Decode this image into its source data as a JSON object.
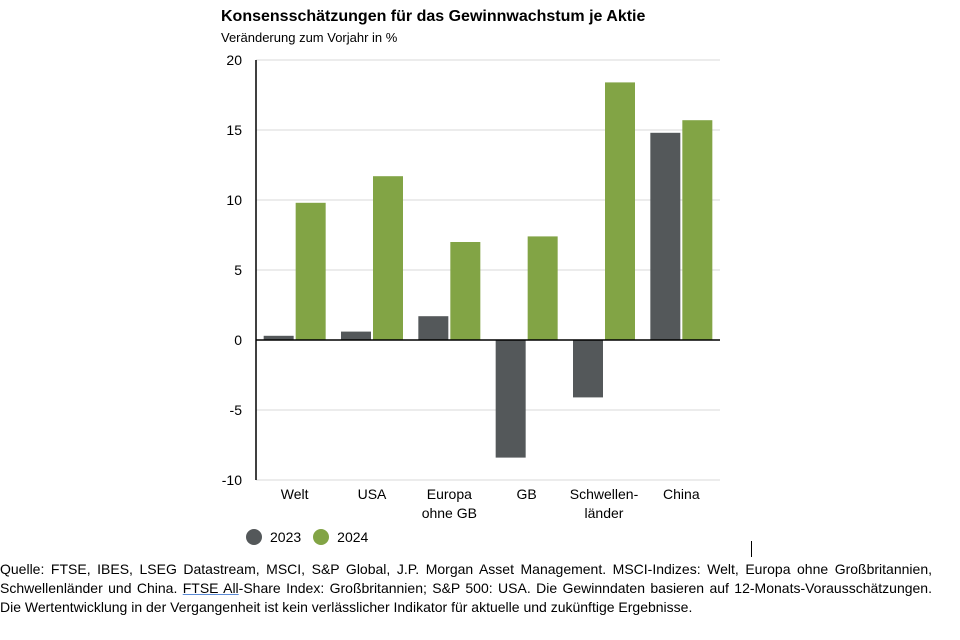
{
  "header": {
    "title": "Konsensschätzungen für das Gewinnwachstum je Aktie",
    "subtitle": "Veränderung zum Vorjahr in %"
  },
  "colors": {
    "series_2023": "#54585a",
    "series_2024": "#82a445",
    "axis": "#000000",
    "grid": "#d9d9d9"
  },
  "chart_data": {
    "type": "bar",
    "categories": [
      "Welt",
      "USA",
      "Europa ohne GB",
      "GB",
      "Schwellen-länder",
      "China"
    ],
    "category_label_lines": [
      [
        "Welt"
      ],
      [
        "USA"
      ],
      [
        "Europa",
        "ohne GB"
      ],
      [
        "GB"
      ],
      [
        "Schwellen-",
        "länder"
      ],
      [
        "China"
      ]
    ],
    "series": [
      {
        "name": "2023",
        "values": [
          0.3,
          0.6,
          1.7,
          -8.4,
          -4.1,
          14.8
        ]
      },
      {
        "name": "2024",
        "values": [
          9.8,
          11.7,
          7.0,
          7.4,
          18.4,
          15.7
        ]
      }
    ],
    "ylim": [
      -10,
      20
    ],
    "yticks": [
      -10,
      -5,
      0,
      5,
      10,
      15,
      20
    ],
    "grid": true,
    "legend_position": "bottom-left"
  },
  "footnote": {
    "part1": "Quelle: FTSE, IBES, LSEG Datastream, MSCI, S&P Global, J.P. Morgan Asset Management. MSCI-Indizes: Welt, Europa ohne Großbritannien, Schwellenländer und China. ",
    "link": "FTSE All",
    "part2": "-Share Index: Großbritannien; S&P 500:  USA. Die Gewinndaten basieren auf 12-Monats-Vorausschätzungen. Die Wertentwicklung in der Vergangenheit ist kein verlässlicher Indikator für aktuelle und zukünftige Ergebnisse."
  }
}
